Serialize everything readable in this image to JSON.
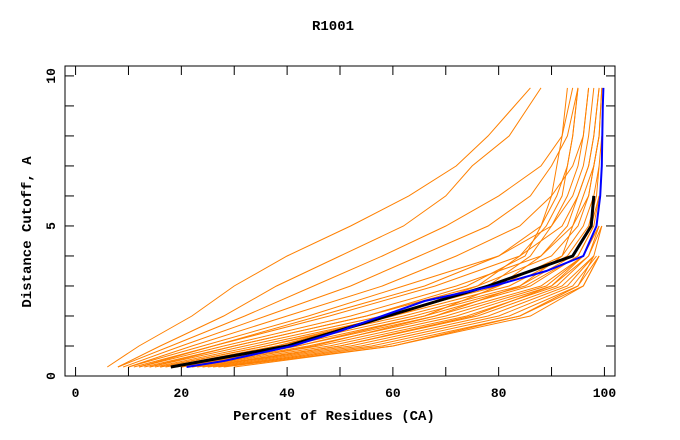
{
  "chart_data": {
    "type": "line",
    "title": "R1001",
    "xlabel": "Percent of Residues (CA)",
    "ylabel": "Distance Cutoff, A",
    "xlim": [
      -2,
      102
    ],
    "ylim": [
      0,
      10.33
    ],
    "x_tick_labels": [
      "0",
      "20",
      "40",
      "60",
      "80",
      "100"
    ],
    "x_ticks": [
      0,
      20,
      40,
      60,
      80,
      100
    ],
    "x_minor_step": 10,
    "y_tick_labels": [
      "0",
      "5",
      "10"
    ],
    "y_ticks": [
      0,
      5,
      10
    ],
    "y_minor_step": 1,
    "grid": false,
    "colors": {
      "models": "#ff8000",
      "highlight_black": "#000000",
      "highlight_blue": "#0000ff"
    },
    "y_levels": [
      0.3,
      1,
      2,
      3,
      4,
      5,
      6,
      7,
      8,
      9.6
    ],
    "model_series_x": [
      [
        6,
        12,
        22,
        30,
        40,
        52,
        63,
        72,
        78,
        86
      ],
      [
        8,
        16,
        28,
        38,
        50,
        62,
        70,
        75,
        82,
        88
      ],
      [
        8,
        18,
        32,
        45,
        58,
        70,
        80,
        88,
        92,
        94
      ],
      [
        9,
        20,
        36,
        52,
        65,
        78,
        86,
        90,
        93,
        95
      ],
      [
        10,
        22,
        40,
        58,
        72,
        84,
        90,
        94,
        96,
        97
      ],
      [
        10,
        24,
        44,
        62,
        80,
        90,
        94,
        96,
        97,
        98
      ],
      [
        11,
        26,
        48,
        68,
        84,
        92,
        95,
        97,
        98,
        99
      ],
      [
        12,
        28,
        52,
        72,
        88,
        94,
        97,
        98,
        99,
        99.5
      ],
      [
        13,
        30,
        55,
        76,
        90,
        95,
        97,
        98,
        99
      ],
      [
        14,
        32,
        58,
        80,
        92,
        96,
        98,
        99,
        99.5
      ],
      [
        15,
        34,
        60,
        82,
        93,
        97,
        98.5,
        99
      ],
      [
        16,
        36,
        62,
        84,
        94,
        97.5,
        99
      ],
      [
        17,
        38,
        64,
        85,
        95,
        98,
        99
      ],
      [
        18,
        40,
        66,
        86,
        95,
        98
      ],
      [
        19,
        42,
        68,
        88,
        96,
        98.5
      ],
      [
        20,
        44,
        70,
        89,
        96,
        99
      ],
      [
        21,
        46,
        72,
        90,
        97,
        99
      ],
      [
        22,
        48,
        74,
        91,
        97,
        99.5
      ],
      [
        23,
        50,
        76,
        92,
        98,
        99.5
      ],
      [
        24,
        52,
        78,
        93,
        98
      ],
      [
        25,
        54,
        80,
        94,
        98.5
      ],
      [
        26,
        56,
        82,
        95,
        99
      ],
      [
        27,
        58,
        84,
        96,
        99
      ],
      [
        28,
        60,
        86,
        96,
        99
      ],
      [
        22,
        45,
        68,
        84,
        92,
        94,
        96,
        98,
        99,
        99.5
      ],
      [
        20,
        42,
        66,
        80,
        88,
        93,
        95,
        97,
        98,
        99
      ],
      [
        18,
        38,
        60,
        78,
        86,
        90,
        93,
        95,
        96,
        97
      ],
      [
        16,
        36,
        60,
        76,
        84,
        89,
        92,
        93,
        94,
        95
      ],
      [
        14,
        30,
        55,
        74,
        85,
        88,
        90,
        91,
        92,
        93
      ],
      [
        12,
        26,
        46,
        66,
        80,
        88,
        91,
        93,
        94,
        95
      ],
      [
        30,
        60,
        84,
        95,
        98
      ],
      [
        24,
        50,
        75,
        90,
        96,
        99
      ]
    ],
    "highlight_black_x": [
      18,
      40,
      59,
      78,
      94,
      97.5,
      98
    ],
    "highlight_blue": {
      "y": [
        0.3,
        0.5,
        1,
        1.5,
        2,
        2.5,
        3,
        3.5,
        4,
        5,
        6,
        7,
        8,
        9,
        9.6
      ],
      "x": [
        21,
        28,
        41,
        50,
        58,
        66,
        79,
        89,
        96,
        98.5,
        99.2,
        99.5,
        99.6,
        99.7,
        99.8
      ]
    }
  }
}
